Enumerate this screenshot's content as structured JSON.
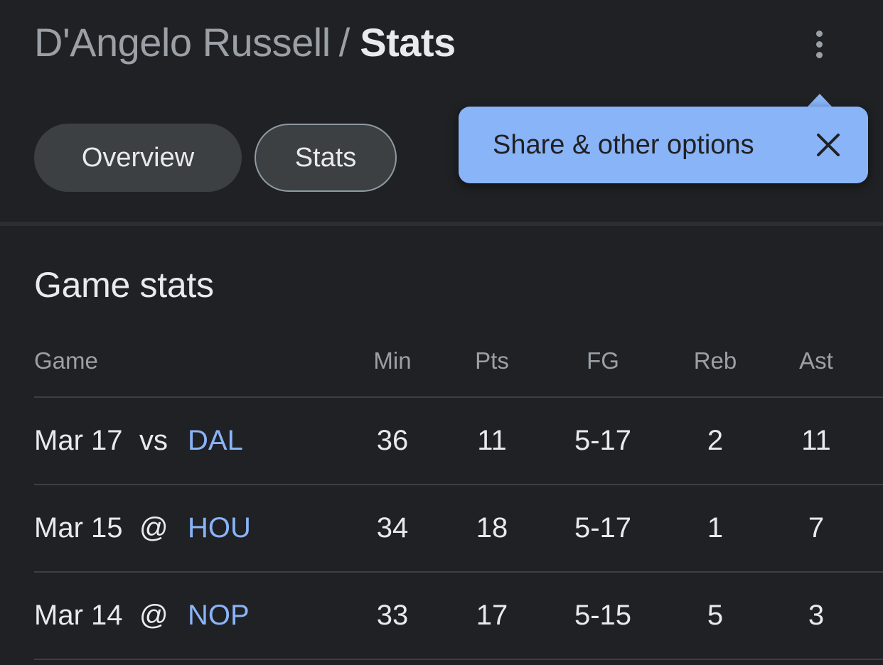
{
  "header": {
    "parent": "D'Angelo Russell",
    "separator": "/",
    "current": "Stats"
  },
  "tabs": [
    {
      "label": "Overview",
      "selected": false
    },
    {
      "label": "Stats",
      "selected": true
    }
  ],
  "tooltip": {
    "text": "Share & other options",
    "close_icon": "close-icon"
  },
  "icons": {
    "more": "more-vert-icon"
  },
  "section": {
    "title": "Game stats"
  },
  "table": {
    "columns": [
      "Game",
      "Min",
      "Pts",
      "FG",
      "Reb",
      "Ast"
    ],
    "rows": [
      {
        "date": "Mar 17",
        "loc": "vs",
        "opp": "DAL",
        "min": "36",
        "pts": "11",
        "fg": "5-17",
        "reb": "2",
        "ast": "11"
      },
      {
        "date": "Mar 15",
        "loc": "@",
        "opp": "HOU",
        "min": "34",
        "pts": "18",
        "fg": "5-17",
        "reb": "1",
        "ast": "7"
      },
      {
        "date": "Mar 14",
        "loc": "@",
        "opp": "NOP",
        "min": "33",
        "pts": "17",
        "fg": "5-15",
        "reb": "5",
        "ast": "3"
      }
    ]
  },
  "colors": {
    "background": "#202124",
    "accent": "#8ab4f8",
    "tab_bg": "#3c4043"
  }
}
